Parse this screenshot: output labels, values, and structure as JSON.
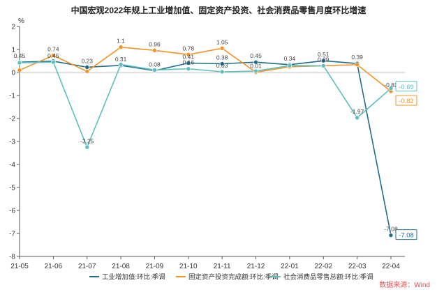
{
  "title": "中国宏观2022年规上工业增加值、固定资产投资、社会消费品零售月度环比增速",
  "source": "数据来源：Wind",
  "chart_data": {
    "type": "line",
    "title": "中国宏观2022年规上工业增加值、固定资产投资、社会消费品零售月度环比增速",
    "ylabel": "%",
    "xlabel": "",
    "ylim": [
      -8,
      2
    ],
    "yticks": [
      2,
      1,
      0,
      -1,
      -2,
      -3,
      -4,
      -5,
      -6,
      -7,
      -8
    ],
    "grid": false,
    "legend_position": "bottom",
    "categories": [
      "21-05",
      "21-06",
      "21-07",
      "21-08",
      "21-09",
      "21-10",
      "21-11",
      "21-12",
      "22-01",
      "22-02",
      "22-03",
      "22-04"
    ],
    "series": [
      {
        "name": "工业增加值:环比:季调",
        "color": "#1f6e8c",
        "values": [
          0.45,
          0.49,
          0.23,
          0.31,
          0.08,
          0.41,
          0.38,
          0.45,
          0.34,
          0.51,
          0.39,
          -7.08
        ],
        "labels": [
          "0.45",
          "",
          "0.23",
          "0.31",
          "0.08",
          "0.41",
          "0.38",
          "0.45",
          "0.34",
          "0.51",
          "0.39",
          "-7.08"
        ],
        "end_label": "-7.08"
      },
      {
        "name": "固定资产投资完成额:环比:季调",
        "color": "#f39325",
        "values": [
          0.1,
          0.74,
          0.05,
          1.1,
          0.96,
          0.78,
          1.05,
          0.01,
          0.25,
          0.29,
          0.34,
          -0.82
        ],
        "labels": [
          "",
          "0.74",
          "",
          "1.1",
          "0.96",
          "0.78",
          "1.05",
          "0.01",
          "",
          "",
          "",
          "-0.82"
        ],
        "end_label": "-0.82"
      },
      {
        "name": "社会消费品零售总额:环比:季调",
        "color": "#5bc0be",
        "values": [
          0.42,
          0.45,
          -3.25,
          0.35,
          0.11,
          0.16,
          0.03,
          0.06,
          0.3,
          0.29,
          -1.97,
          -0.69
        ],
        "labels": [
          "",
          "0.45",
          "-3.25",
          "",
          "",
          "0.16",
          "0.03",
          "",
          "",
          "0.29",
          "-1.97",
          ""
        ],
        "end_label": "-0.69"
      }
    ]
  }
}
